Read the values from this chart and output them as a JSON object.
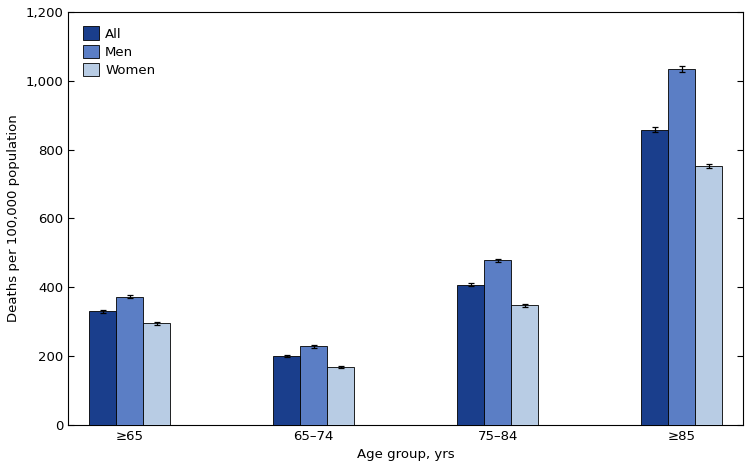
{
  "categories": [
    "≥65",
    "65–74",
    "75–84",
    "≥85"
  ],
  "series": {
    "All": [
      330,
      200,
      407,
      858
    ],
    "Men": [
      372,
      228,
      478,
      1035
    ],
    "Women": [
      295,
      168,
      347,
      752
    ]
  },
  "errors": {
    "All": [
      4,
      3,
      4,
      6
    ],
    "Men": [
      5,
      4,
      5,
      9
    ],
    "Women": [
      4,
      3,
      4,
      6
    ]
  },
  "colors": {
    "All": "#1a3e8c",
    "Men": "#5b7ec5",
    "Women": "#b8cce4"
  },
  "ylabel": "Deaths per 100,000 population",
  "xlabel": "Age group, yrs",
  "ylim": [
    0,
    1200
  ],
  "yticks": [
    0,
    200,
    400,
    600,
    800,
    1000,
    1200
  ],
  "ytick_labels": [
    "0",
    "200",
    "400",
    "600",
    "800",
    "1,000",
    "1,200"
  ],
  "bar_width": 0.22,
  "group_centers": [
    1.0,
    2.5,
    4.0,
    5.5
  ],
  "legend_labels": [
    "All",
    "Men",
    "Women"
  ],
  "edge_color": "#000000",
  "figure_size": [
    7.5,
    4.68
  ],
  "dpi": 100
}
